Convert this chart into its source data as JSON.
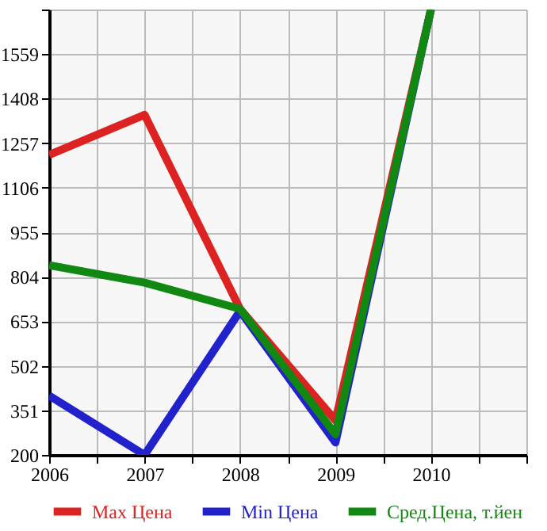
{
  "chart_data": {
    "type": "line",
    "x": [
      2006,
      2007,
      2008,
      2009,
      2010
    ],
    "series": [
      {
        "name": "Max Цена",
        "color": "#dd2222",
        "values": [
          1217,
          1353,
          695,
          317,
          1710
        ]
      },
      {
        "name": "Min Цена",
        "color": "#2222cc",
        "values": [
          401,
          200,
          688,
          242,
          1710
        ]
      },
      {
        "name": "Сред.Цена, т.йен",
        "color": "#118811",
        "values": [
          843,
          784,
          695,
          270,
          1710
        ]
      }
    ],
    "xlim": [
      2006,
      2011
    ],
    "xticks": [
      2006,
      {
        "value": 2006.5,
        "label": null
      },
      2007,
      {
        "value": 2007.5,
        "label": null
      },
      2008,
      {
        "value": 2008.5,
        "label": null
      },
      2009,
      {
        "value": 2009.5,
        "label": null
      },
      2010,
      {
        "value": 2010.5,
        "label": null
      },
      {
        "value": 2011,
        "label": null
      }
    ],
    "ylim": [
      200,
      1710
    ],
    "yticks": [
      200,
      351,
      502,
      653,
      804,
      955,
      1106,
      1257,
      1408,
      1559,
      {
        "value": 1710,
        "label": null
      }
    ],
    "grid": true,
    "legend": "bottom",
    "marker": "none",
    "line_style": "solid"
  }
}
